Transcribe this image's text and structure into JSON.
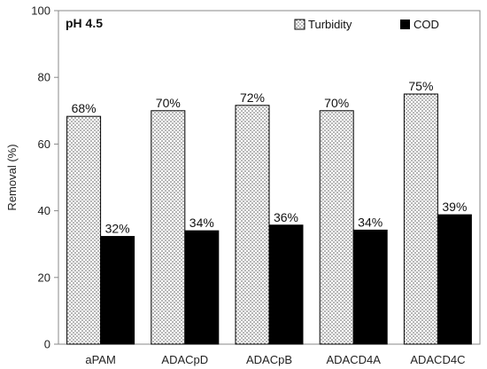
{
  "chart_data": {
    "type": "bar",
    "annotation": "pH 4.5",
    "categories": [
      "aPAM",
      "ADACpD",
      "ADACpB",
      "ADACD4A",
      "ADACD4C"
    ],
    "series": [
      {
        "name": "Turbidity",
        "values": [
          68.3,
          70.0,
          71.6,
          70.0,
          75.0
        ],
        "labels": [
          "68%",
          "70%",
          "72%",
          "70%",
          "75%"
        ],
        "pattern": "dotted"
      },
      {
        "name": "COD",
        "values": [
          32.3,
          34.0,
          35.7,
          34.2,
          38.8
        ],
        "labels": [
          "32%",
          "34%",
          "36%",
          "34%",
          "39%"
        ],
        "color": "#000000"
      }
    ],
    "ylabel": "Removal (%)",
    "xlabel": "",
    "ylim": [
      0,
      100
    ],
    "yticks": [
      0,
      20,
      40,
      60,
      80,
      100
    ],
    "grid": false,
    "legend_position": "top-right"
  }
}
